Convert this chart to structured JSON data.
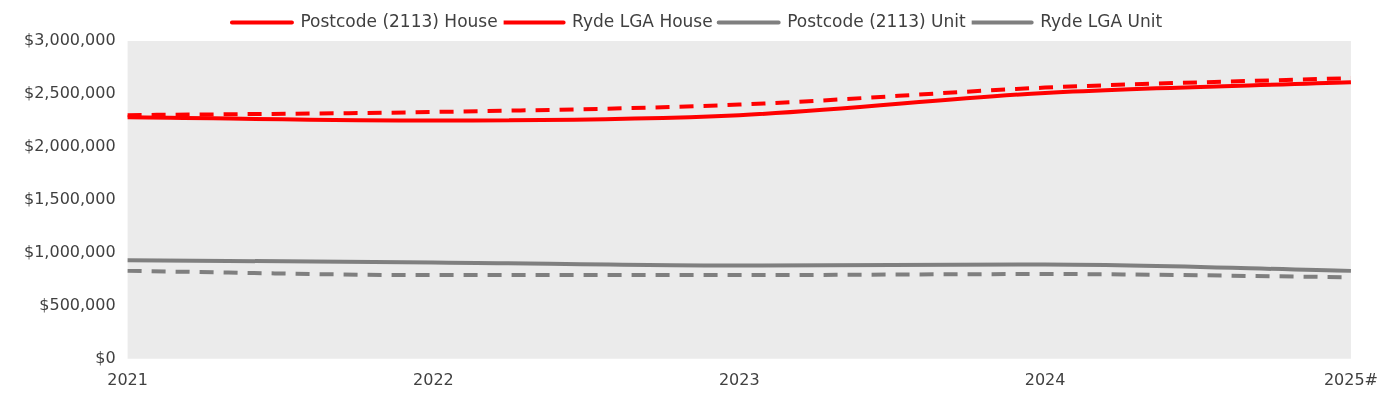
{
  "chart_data": {
    "type": "line",
    "categories": [
      "2021",
      "2022",
      "2023",
      "2024",
      "2025#"
    ],
    "series": [
      {
        "name": "Postcode (2113) House",
        "color": "#ff0000",
        "line_style": "solid",
        "values": [
          2280000,
          2250000,
          2300000,
          2510000,
          2610000
        ]
      },
      {
        "name": "Ryde LGA House",
        "color": "#ff0000",
        "line_style": "dashed",
        "values": [
          2300000,
          2330000,
          2400000,
          2560000,
          2650000
        ]
      },
      {
        "name": "Postcode (2113) Unit",
        "color": "#7f7f7f",
        "line_style": "solid",
        "values": [
          930000,
          910000,
          880000,
          890000,
          830000
        ]
      },
      {
        "name": "Ryde LGA Unit",
        "color": "#7f7f7f",
        "line_style": "dashed",
        "values": [
          830000,
          790000,
          790000,
          800000,
          770000
        ]
      }
    ],
    "ylim": [
      0,
      3000000
    ],
    "yticks": [
      {
        "value": 0,
        "label": "$0"
      },
      {
        "value": 500000,
        "label": "$500,000"
      },
      {
        "value": 1000000,
        "label": "$1,000,000"
      },
      {
        "value": 1500000,
        "label": "$1,500,000"
      },
      {
        "value": 2000000,
        "label": "$2,000,000"
      },
      {
        "value": 2500000,
        "label": "$2,500,000"
      },
      {
        "value": 3000000,
        "label": "$3,000,000"
      }
    ],
    "grid": false,
    "legend": "top",
    "marker": "none"
  }
}
